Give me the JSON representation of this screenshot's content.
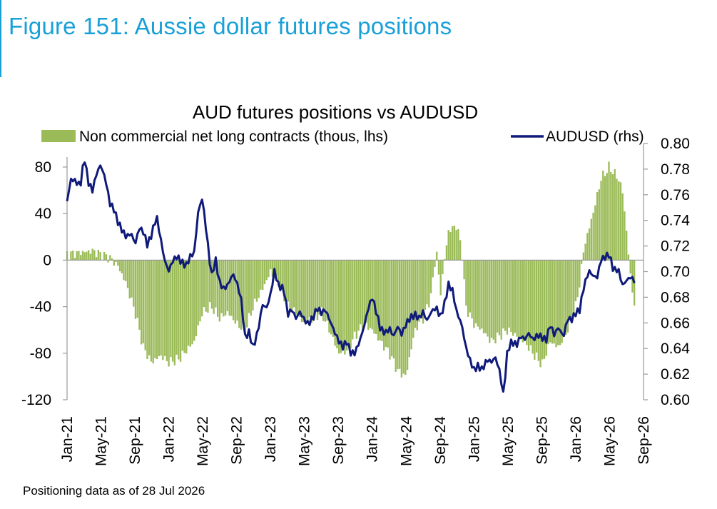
{
  "figure_title": "Figure 151: Aussie dollar futures positions",
  "footnote": "Positioning data as of 28 Jul 2026",
  "colors": {
    "accent": "#1aa0d8",
    "bars": "#9bbb59",
    "line": "#0f1a7a",
    "axis": "#999999"
  },
  "chart_data": {
    "type": "bar+line",
    "title": "AUD futures positions  vs AUDUSD",
    "legend_position": "top",
    "grid": false,
    "x_tick_labels": [
      "Jan-21",
      "May-21",
      "Sep-21",
      "Jan-22",
      "May-22",
      "Sep-22",
      "Jan-23",
      "May-23",
      "Sep-23",
      "Jan-24",
      "May-24",
      "Sep-24",
      "Jan-25",
      "May-25",
      "Sep-25",
      "Jan-26",
      "May-26",
      "Sep-26"
    ],
    "y_left": {
      "range": [
        -120,
        80
      ],
      "ticks": [
        "-120",
        "-80",
        "-40",
        "0",
        "40",
        "80"
      ]
    },
    "y_right": {
      "range": [
        0.6,
        0.8
      ],
      "ticks": [
        "0.60",
        "0.62",
        "0.64",
        "0.66",
        "0.68",
        "0.70",
        "0.72",
        "0.74",
        "0.76",
        "0.78",
        "0.80"
      ]
    },
    "series": [
      {
        "name": "Non commercial net long contracts (thous, lhs)",
        "type": "bar",
        "axis": "left",
        "points": [
          [
            2021.0,
            5
          ],
          [
            2021.25,
            8
          ],
          [
            2021.42,
            2
          ],
          [
            2021.5,
            -5
          ],
          [
            2021.58,
            -20
          ],
          [
            2021.67,
            -45
          ],
          [
            2021.75,
            -75
          ],
          [
            2021.83,
            -88
          ],
          [
            2021.92,
            -82
          ],
          [
            2022.0,
            -88
          ],
          [
            2022.1,
            -85
          ],
          [
            2022.25,
            -70
          ],
          [
            2022.33,
            -45
          ],
          [
            2022.42,
            -40
          ],
          [
            2022.5,
            -50
          ],
          [
            2022.58,
            -45
          ],
          [
            2022.67,
            -55
          ],
          [
            2022.75,
            -60
          ],
          [
            2022.83,
            -40
          ],
          [
            2022.92,
            -25
          ],
          [
            2023.0,
            -10
          ],
          [
            2023.08,
            -20
          ],
          [
            2023.17,
            -40
          ],
          [
            2023.25,
            -45
          ],
          [
            2023.33,
            -55
          ],
          [
            2023.42,
            -50
          ],
          [
            2023.5,
            -45
          ],
          [
            2023.58,
            -60
          ],
          [
            2023.67,
            -80
          ],
          [
            2023.75,
            -78
          ],
          [
            2023.83,
            -65
          ],
          [
            2023.92,
            -55
          ],
          [
            2024.0,
            -60
          ],
          [
            2024.08,
            -70
          ],
          [
            2024.17,
            -80
          ],
          [
            2024.25,
            -95
          ],
          [
            2024.33,
            -100
          ],
          [
            2024.42,
            -60
          ],
          [
            2024.5,
            -50
          ],
          [
            2024.58,
            -30
          ],
          [
            2024.63,
            10
          ],
          [
            2024.67,
            -30
          ],
          [
            2024.71,
            0
          ],
          [
            2024.75,
            25
          ],
          [
            2024.83,
            30
          ],
          [
            2024.88,
            10
          ],
          [
            2024.92,
            -40
          ],
          [
            2025.0,
            -55
          ],
          [
            2025.08,
            -60
          ],
          [
            2025.17,
            -70
          ],
          [
            2025.25,
            -65
          ],
          [
            2025.33,
            -60
          ],
          [
            2025.42,
            -65
          ],
          [
            2025.5,
            -70
          ],
          [
            2025.58,
            -80
          ],
          [
            2025.67,
            -90
          ],
          [
            2025.75,
            -70
          ],
          [
            2025.83,
            -75
          ],
          [
            2025.92,
            -60
          ],
          [
            2026.0,
            -40
          ],
          [
            2026.04,
            -20
          ],
          [
            2026.08,
            10
          ],
          [
            2026.17,
            40
          ],
          [
            2026.25,
            70
          ],
          [
            2026.33,
            80
          ],
          [
            2026.42,
            70
          ],
          [
            2026.46,
            60
          ],
          [
            2026.5,
            25
          ],
          [
            2026.54,
            -15
          ],
          [
            2026.58,
            -40
          ]
        ]
      },
      {
        "name": "AUDUSD (rhs)",
        "type": "line",
        "axis": "right",
        "points": [
          [
            2021.0,
            0.755
          ],
          [
            2021.04,
            0.772
          ],
          [
            2021.08,
            0.77
          ],
          [
            2021.13,
            0.766
          ],
          [
            2021.17,
            0.788
          ],
          [
            2021.21,
            0.768
          ],
          [
            2021.25,
            0.762
          ],
          [
            2021.29,
            0.775
          ],
          [
            2021.33,
            0.782
          ],
          [
            2021.38,
            0.77
          ],
          [
            2021.42,
            0.752
          ],
          [
            2021.46,
            0.748
          ],
          [
            2021.5,
            0.738
          ],
          [
            2021.54,
            0.732
          ],
          [
            2021.58,
            0.727
          ],
          [
            2021.63,
            0.73
          ],
          [
            2021.67,
            0.722
          ],
          [
            2021.71,
            0.735
          ],
          [
            2021.75,
            0.732
          ],
          [
            2021.79,
            0.722
          ],
          [
            2021.83,
            0.73
          ],
          [
            2021.88,
            0.745
          ],
          [
            2021.92,
            0.727
          ],
          [
            2021.96,
            0.71
          ],
          [
            2022.0,
            0.702
          ],
          [
            2022.04,
            0.71
          ],
          [
            2022.08,
            0.713
          ],
          [
            2022.13,
            0.708
          ],
          [
            2022.17,
            0.705
          ],
          [
            2022.21,
            0.712
          ],
          [
            2022.25,
            0.715
          ],
          [
            2022.29,
            0.747
          ],
          [
            2022.33,
            0.757
          ],
          [
            2022.37,
            0.73
          ],
          [
            2022.42,
            0.695
          ],
          [
            2022.46,
            0.708
          ],
          [
            2022.5,
            0.69
          ],
          [
            2022.54,
            0.685
          ],
          [
            2022.58,
            0.688
          ],
          [
            2022.63,
            0.697
          ],
          [
            2022.67,
            0.69
          ],
          [
            2022.71,
            0.678
          ],
          [
            2022.75,
            0.648
          ],
          [
            2022.79,
            0.652
          ],
          [
            2022.83,
            0.64
          ],
          [
            2022.88,
            0.655
          ],
          [
            2022.92,
            0.675
          ],
          [
            2022.96,
            0.672
          ],
          [
            2023.0,
            0.683
          ],
          [
            2023.04,
            0.702
          ],
          [
            2023.08,
            0.69
          ],
          [
            2023.13,
            0.688
          ],
          [
            2023.17,
            0.668
          ],
          [
            2023.21,
            0.672
          ],
          [
            2023.25,
            0.665
          ],
          [
            2023.29,
            0.67
          ],
          [
            2023.33,
            0.664
          ],
          [
            2023.37,
            0.66
          ],
          [
            2023.42,
            0.665
          ],
          [
            2023.46,
            0.672
          ],
          [
            2023.5,
            0.668
          ],
          [
            2023.54,
            0.67
          ],
          [
            2023.58,
            0.662
          ],
          [
            2023.63,
            0.652
          ],
          [
            2023.67,
            0.645
          ],
          [
            2023.71,
            0.64
          ],
          [
            2023.75,
            0.644
          ],
          [
            2023.79,
            0.635
          ],
          [
            2023.83,
            0.635
          ],
          [
            2023.88,
            0.645
          ],
          [
            2023.92,
            0.656
          ],
          [
            2023.96,
            0.67
          ],
          [
            2024.0,
            0.679
          ],
          [
            2024.04,
            0.668
          ],
          [
            2024.08,
            0.655
          ],
          [
            2024.13,
            0.652
          ],
          [
            2024.17,
            0.656
          ],
          [
            2024.21,
            0.65
          ],
          [
            2024.25,
            0.658
          ],
          [
            2024.29,
            0.652
          ],
          [
            2024.33,
            0.66
          ],
          [
            2024.37,
            0.665
          ],
          [
            2024.42,
            0.668
          ],
          [
            2024.46,
            0.665
          ],
          [
            2024.5,
            0.67
          ],
          [
            2024.54,
            0.663
          ],
          [
            2024.58,
            0.67
          ],
          [
            2024.63,
            0.673
          ],
          [
            2024.67,
            0.665
          ],
          [
            2024.71,
            0.675
          ],
          [
            2024.75,
            0.69
          ],
          [
            2024.79,
            0.685
          ],
          [
            2024.83,
            0.668
          ],
          [
            2024.88,
            0.658
          ],
          [
            2024.92,
            0.64
          ],
          [
            2024.96,
            0.63
          ],
          [
            2025.0,
            0.622
          ],
          [
            2025.04,
            0.625
          ],
          [
            2025.08,
            0.622
          ],
          [
            2025.13,
            0.63
          ],
          [
            2025.17,
            0.628
          ],
          [
            2025.21,
            0.632
          ],
          [
            2025.25,
            0.622
          ],
          [
            2025.29,
            0.603
          ],
          [
            2025.33,
            0.638
          ],
          [
            2025.37,
            0.645
          ],
          [
            2025.42,
            0.643
          ],
          [
            2025.46,
            0.65
          ],
          [
            2025.5,
            0.648
          ],
          [
            2025.54,
            0.653
          ],
          [
            2025.58,
            0.648
          ],
          [
            2025.63,
            0.652
          ],
          [
            2025.67,
            0.65
          ],
          [
            2025.71,
            0.648
          ],
          [
            2025.75,
            0.66
          ],
          [
            2025.79,
            0.652
          ],
          [
            2025.83,
            0.658
          ],
          [
            2025.88,
            0.65
          ],
          [
            2025.92,
            0.664
          ],
          [
            2025.96,
            0.663
          ],
          [
            2026.0,
            0.668
          ],
          [
            2026.04,
            0.67
          ],
          [
            2026.08,
            0.688
          ],
          [
            2026.13,
            0.7
          ],
          [
            2026.17,
            0.696
          ],
          [
            2026.21,
            0.694
          ],
          [
            2026.25,
            0.708
          ],
          [
            2026.29,
            0.71
          ],
          [
            2026.33,
            0.712
          ],
          [
            2026.37,
            0.7
          ],
          [
            2026.42,
            0.7
          ],
          [
            2026.46,
            0.688
          ],
          [
            2026.5,
            0.692
          ],
          [
            2026.54,
            0.695
          ],
          [
            2026.58,
            0.692
          ]
        ]
      }
    ]
  }
}
